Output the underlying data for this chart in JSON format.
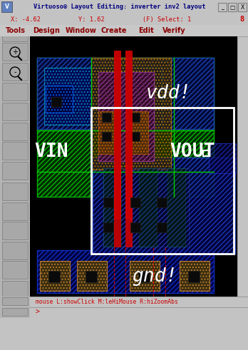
{
  "title": "Virtuoso® Layout Editing: inverter inv2 layout",
  "status_num": "8",
  "menu_items": [
    "Tools",
    "Design",
    "Window",
    "Create",
    "Edit",
    "Verify"
  ],
  "bottom_line1": "mouse L:showClick M:leHiMouse R:hiZoomAbs",
  "bottom_line2": ">",
  "label_vdd": "vdd!",
  "label_vin": "VIN",
  "label_vout": "VOUT",
  "label_gnd": "gnd!",
  "title_bar_bg": "#c3c3c3",
  "status_bar_bg": "#c3c3c3",
  "menu_bar_bg": "#c3c3c3",
  "toolbar_bg": "#b0b0b0",
  "canvas_bg": "#000000",
  "scrollbar_bg": "#c3c3c3",
  "bottom_bar_bg": "#c3c3c3",
  "red_text": "#cc0000",
  "dark_red_text": "#8b0000"
}
